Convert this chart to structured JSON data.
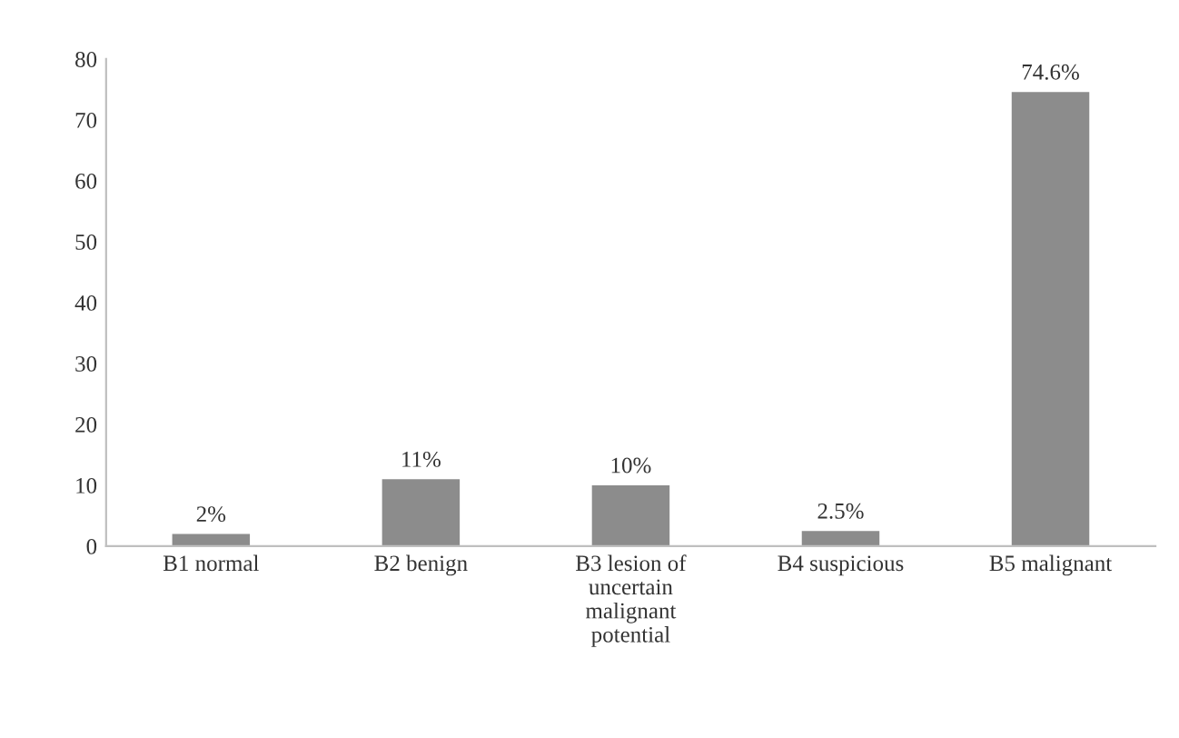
{
  "chart_data": {
    "type": "bar",
    "categories": [
      "B1 normal",
      "B2 benign",
      "B3 lesion of\nuncertain\nmalignant\npotential",
      "B4 suspicious",
      "B5 malignant"
    ],
    "values": [
      2,
      11,
      10,
      2.5,
      74.6
    ],
    "value_labels": [
      "2%",
      "11%",
      "10%",
      "2.5%",
      "74.6%"
    ],
    "color": "#8c8c8c",
    "ylim": [
      0,
      80
    ],
    "yticks": [
      0,
      10,
      20,
      30,
      40,
      50,
      60,
      70,
      80
    ],
    "grid": false,
    "legend": false
  }
}
